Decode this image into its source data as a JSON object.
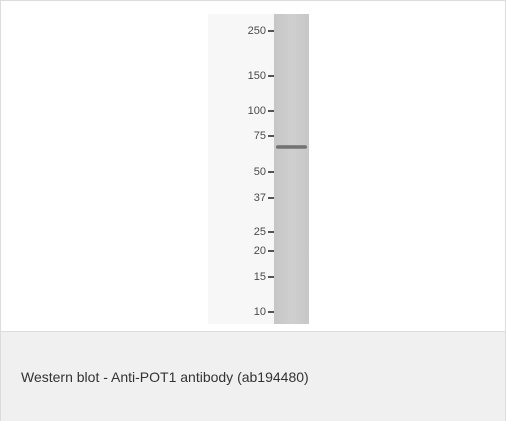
{
  "figure": {
    "caption": "Western blot - Anti-POT1 antibody (ab194480)",
    "markers": [
      {
        "label": "250",
        "kda": 250
      },
      {
        "label": "150",
        "kda": 150
      },
      {
        "label": "100",
        "kda": 100
      },
      {
        "label": "75",
        "kda": 75
      },
      {
        "label": "50",
        "kda": 50
      },
      {
        "label": "37",
        "kda": 37
      },
      {
        "label": "25",
        "kda": 25
      },
      {
        "label": "20",
        "kda": 20
      },
      {
        "label": "15",
        "kda": 15
      },
      {
        "label": "10",
        "kda": 10
      }
    ],
    "bands": [
      {
        "kda": 66
      }
    ]
  }
}
